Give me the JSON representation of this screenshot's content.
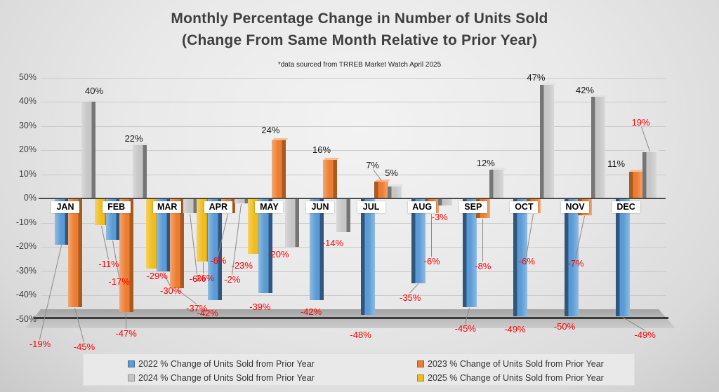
{
  "header": {
    "title_line1": "Monthly Percentage Change in Number of Units Sold",
    "title_line2": "(Change From Same Month Relative to Prior Year)",
    "subtitle": "*data sourced from TRREB Market Watch April 2025"
  },
  "y_axis": {
    "min": -50,
    "max": 50,
    "step": 10,
    "unit": "%"
  },
  "chart_data": {
    "type": "bar",
    "title": "Monthly Percentage Change in Number of Units Sold (Change From Same Month Relative to Prior Year)",
    "xlabel": "",
    "ylabel": "",
    "ylim": [
      -50,
      50
    ],
    "grid": true,
    "legend_position": "bottom",
    "categories": [
      "JAN",
      "FEB",
      "MAR",
      "APR",
      "MAY",
      "JUN",
      "JUL",
      "AUG",
      "SEP",
      "OCT",
      "NOV",
      "DEC"
    ],
    "series": [
      {
        "name": "2022 % Change of Units Sold from Prior Year",
        "color": "#5B9BD5",
        "color_dark": "#31567E",
        "values": [
          -19,
          -17,
          -30,
          -42,
          -39,
          -42,
          -48,
          -35,
          -45,
          -49,
          -50,
          -49
        ]
      },
      {
        "name": "2023 % Change of Units Sold from Prior Year",
        "color": "#ED7D31",
        "color_dark": "#A85A21",
        "values": [
          -45,
          -47,
          -37,
          -6,
          24,
          16,
          7,
          -6,
          -8,
          -6,
          -7,
          11
        ]
      },
      {
        "name": "2024 % Change of Units Sold from Prior Year",
        "color": "#C6C6C6",
        "color_dark": "#757575",
        "values": [
          40,
          22,
          -6,
          -2,
          -20,
          -14,
          5,
          -3,
          12,
          47,
          42,
          19
        ]
      },
      {
        "name": "2025 % Change of Units Sold from Prior Year",
        "color": "#F0BC1E",
        "color_dark": "#AD8200",
        "values": [
          -11,
          -29,
          -26,
          -23,
          null,
          null,
          null,
          null,
          null,
          null,
          null,
          null
        ]
      }
    ],
    "label_colors": {
      "negative": "#FF0000",
      "positive": "#1a1a1a"
    },
    "red_positive_labels": [
      {
        "month": "DEC",
        "series": "2024 % Change of Units Sold from Prior Year"
      }
    ]
  }
}
